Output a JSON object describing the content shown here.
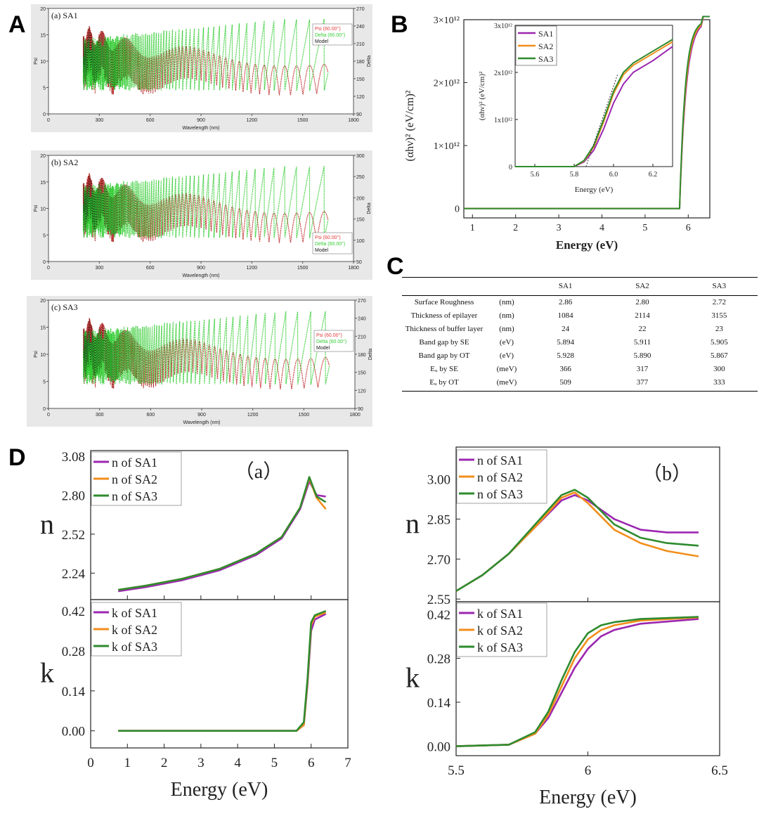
{
  "panel_letters": [
    "A",
    "B",
    "C",
    "D"
  ],
  "chart_data": [
    {
      "id": "A-a",
      "type": "line",
      "title": "(a) SA1",
      "xlabel": "Wavelength (nm)",
      "ylabel": "Psi",
      "y2label": "Delta",
      "xlim": [
        0,
        1800
      ],
      "ylim": [
        0,
        20
      ],
      "y2lim": [
        90,
        270
      ],
      "xticks": [
        0,
        300,
        600,
        900,
        1200,
        1500,
        1800
      ],
      "yticks": [
        0,
        5,
        10,
        15,
        20
      ],
      "y2ticks": [
        90,
        120,
        150,
        180,
        210,
        240,
        270
      ],
      "legend": [
        "Psi (60.00°)",
        "Delta (60.00°)",
        "Model"
      ],
      "legend_position": "top-right",
      "series": [
        {
          "name": "Psi (60.00°)",
          "color": "#e23a3a",
          "x": [
            200,
            300,
            400,
            500,
            600,
            700,
            800,
            900,
            1000,
            1100,
            1200,
            1300,
            1400,
            1500,
            1600,
            1650
          ],
          "values": [
            16,
            3,
            15,
            2,
            14,
            1,
            13,
            12,
            1,
            10,
            11,
            3,
            0,
            8,
            11,
            11
          ]
        },
        {
          "name": "Delta (60.00°)",
          "color": "#33cc33",
          "x": [
            200,
            300,
            400,
            500,
            600,
            700,
            800,
            900,
            1000,
            1100,
            1200,
            1300,
            1350,
            1400,
            1500,
            1650
          ],
          "values": [
            140,
            235,
            120,
            240,
            110,
            245,
            105,
            250,
            100,
            255,
            150,
            260,
            100,
            110,
            150,
            180
          ]
        }
      ]
    },
    {
      "id": "A-b",
      "type": "line",
      "title": "(b) SA2",
      "xlabel": "Wavelength (nm)",
      "ylabel": "Psi",
      "y2label": "Delta",
      "xlim": [
        0,
        1800
      ],
      "ylim": [
        0,
        20
      ],
      "y2lim": [
        50,
        300
      ],
      "xticks": [
        0,
        300,
        600,
        900,
        1200,
        1500,
        1800
      ],
      "yticks": [
        0,
        5,
        10,
        15,
        20
      ],
      "y2ticks": [
        50,
        100,
        150,
        200,
        250,
        300
      ],
      "legend": [
        "Psi (60.00°)",
        "Delta (60.00°)",
        "Model"
      ],
      "legend_position": "bottom-right",
      "series": [
        {
          "name": "Psi (60.00°)",
          "color": "#e23a3a",
          "x": [
            200,
            300,
            400,
            500,
            600,
            700,
            800,
            900,
            1000,
            1100,
            1200,
            1300,
            1400,
            1500,
            1620
          ],
          "values": [
            16,
            2,
            14,
            2,
            14,
            1,
            13,
            12,
            0,
            12,
            1,
            11,
            0,
            11,
            4
          ]
        },
        {
          "name": "Delta (60.00°)",
          "color": "#33cc33",
          "x": [
            200,
            300,
            400,
            500,
            600,
            700,
            800,
            900,
            1000,
            1100,
            1200,
            1300,
            1400,
            1500,
            1620
          ],
          "values": [
            120,
            230,
            120,
            240,
            120,
            245,
            120,
            250,
            120,
            255,
            120,
            255,
            120,
            260,
            265
          ]
        }
      ]
    },
    {
      "id": "A-c",
      "type": "line",
      "title": "(c) SA3",
      "xlabel": "Wavelength (nm)",
      "ylabel": "Psi",
      "y2label": "Delta",
      "xlim": [
        0,
        1800
      ],
      "ylim": [
        0,
        20
      ],
      "y2lim": [
        90,
        270
      ],
      "xticks": [
        0,
        300,
        600,
        900,
        1200,
        1500,
        1800
      ],
      "yticks": [
        0,
        5,
        10,
        15,
        20
      ],
      "y2ticks": [
        90,
        120,
        150,
        180,
        210,
        240,
        270
      ],
      "legend": [
        "Psi (60.00°)",
        "Delta (60.00°)",
        "Model"
      ],
      "legend_position": "top-right",
      "series": [
        {
          "name": "Psi (60.00°)",
          "color": "#e23a3a",
          "x": [
            200,
            300,
            400,
            500,
            600,
            700,
            800,
            900,
            1000,
            1100,
            1200,
            1300,
            1400,
            1500,
            1650
          ],
          "values": [
            17,
            2,
            14,
            1,
            14,
            1,
            13,
            1,
            13,
            0,
            12,
            0,
            11,
            0,
            8
          ]
        },
        {
          "name": "Delta (60.00°)",
          "color": "#33cc33",
          "x": [
            200,
            300,
            400,
            500,
            600,
            700,
            800,
            900,
            1000,
            1100,
            1200,
            1300,
            1400,
            1500,
            1650
          ],
          "values": [
            160,
            230,
            120,
            240,
            120,
            245,
            120,
            250,
            120,
            252,
            120,
            255,
            120,
            258,
            180
          ]
        }
      ]
    },
    {
      "id": "B",
      "type": "line",
      "xlabel": "Energy (eV)",
      "ylabel": "(αhν)² (eV/cm)²",
      "xlim": [
        0.8,
        6.5
      ],
      "ylim": [
        -0.15,
        3.0
      ],
      "xticks": [
        1,
        2,
        3,
        4,
        5,
        6
      ],
      "yticks": [
        0,
        1,
        2,
        3
      ],
      "ytick_labels": [
        "0",
        "1×10¹²",
        "2×10¹²",
        "3×10¹²"
      ],
      "legend": [
        "SA1",
        "SA2",
        "SA3"
      ],
      "legend_position": "inset top-left",
      "series": [
        {
          "name": "SA1",
          "color": "#9b27b0",
          "x": [
            0.8,
            5.8,
            5.9,
            6.0,
            6.1,
            6.2,
            6.3,
            6.5
          ],
          "values": [
            0,
            0,
            0.4,
            1.4,
            2.0,
            2.2,
            2.4,
            3.0
          ]
        },
        {
          "name": "SA2",
          "color": "#f28e1c",
          "x": [
            0.8,
            5.8,
            5.9,
            6.0,
            6.1,
            6.2,
            6.3,
            6.5
          ],
          "values": [
            0,
            0,
            0.45,
            1.6,
            2.1,
            2.3,
            2.5,
            3.0
          ]
        },
        {
          "name": "SA3",
          "color": "#2e8b2e",
          "x": [
            0.8,
            5.8,
            5.9,
            6.0,
            6.1,
            6.2,
            6.3,
            6.5
          ],
          "values": [
            0,
            0,
            0.5,
            1.7,
            2.15,
            2.4,
            2.6,
            3.0
          ]
        }
      ],
      "inset": {
        "xlabel": "Energy (eV)",
        "ylabel": "(αhν)² (eV/cm)²",
        "xlim": [
          5.5,
          6.3
        ],
        "ylim": [
          0,
          3
        ],
        "xticks": [
          5.6,
          5.8,
          6.0,
          6.2
        ],
        "yticks": [
          0,
          1,
          2,
          3
        ],
        "ytick_labels": [
          "0",
          "1x10¹²",
          "2x10¹²",
          "3x10¹²"
        ],
        "series": [
          {
            "name": "SA1",
            "x": [
              5.5,
              5.8,
              5.85,
              5.9,
              5.95,
              6.0,
              6.05,
              6.1,
              6.2,
              6.3
            ],
            "values": [
              0,
              0,
              0.1,
              0.35,
              0.8,
              1.35,
              1.75,
              2.0,
              2.25,
              2.55
            ]
          },
          {
            "name": "SA2",
            "x": [
              5.5,
              5.8,
              5.85,
              5.9,
              5.95,
              6.0,
              6.05,
              6.1,
              6.2,
              6.3
            ],
            "values": [
              0,
              0,
              0.12,
              0.42,
              0.95,
              1.55,
              1.95,
              2.15,
              2.4,
              2.65
            ]
          },
          {
            "name": "SA3",
            "x": [
              5.5,
              5.8,
              5.85,
              5.9,
              5.95,
              6.0,
              6.05,
              6.1,
              6.2,
              6.3
            ],
            "values": [
              0,
              0,
              0.13,
              0.45,
              1.0,
              1.6,
              2.0,
              2.2,
              2.45,
              2.7
            ]
          }
        ]
      }
    },
    {
      "id": "D-a-n",
      "type": "line",
      "title": "（a）",
      "ylabel": "n",
      "xlim": [
        0,
        7
      ],
      "ylim": [
        2.05,
        3.12
      ],
      "yticks": [
        2.24,
        2.52,
        2.8,
        3.08
      ],
      "legend": [
        "n of SA1",
        "n of SA2",
        "n of SA3"
      ],
      "legend_position": "top-left",
      "series": [
        {
          "name": "n of SA1",
          "color": "#9b27b0",
          "x": [
            0.75,
            1.5,
            2.5,
            3.5,
            4.5,
            5.2,
            5.7,
            5.95,
            6.15,
            6.4
          ],
          "values": [
            2.11,
            2.14,
            2.19,
            2.26,
            2.37,
            2.49,
            2.7,
            2.9,
            2.8,
            2.79
          ]
        },
        {
          "name": "n of SA2",
          "color": "#f28e1c",
          "x": [
            0.75,
            1.5,
            2.5,
            3.5,
            4.5,
            5.2,
            5.7,
            5.95,
            6.15,
            6.4
          ],
          "values": [
            2.12,
            2.15,
            2.2,
            2.27,
            2.38,
            2.5,
            2.71,
            2.92,
            2.78,
            2.7
          ]
        },
        {
          "name": "n of SA3",
          "color": "#2e8b2e",
          "x": [
            0.75,
            1.5,
            2.5,
            3.5,
            4.5,
            5.2,
            5.7,
            5.95,
            6.15,
            6.4
          ],
          "values": [
            2.12,
            2.15,
            2.2,
            2.27,
            2.38,
            2.5,
            2.71,
            2.93,
            2.79,
            2.75
          ]
        }
      ]
    },
    {
      "id": "D-a-k",
      "type": "line",
      "xlabel": "Energy (eV)",
      "ylabel": "k",
      "xlim": [
        0,
        7
      ],
      "ylim": [
        -0.06,
        0.46
      ],
      "xticks": [
        0,
        1,
        2,
        3,
        4,
        5,
        6,
        7
      ],
      "yticks": [
        0.0,
        0.14,
        0.28,
        0.42
      ],
      "legend": [
        "k of SA1",
        "k of SA2",
        "k of SA3"
      ],
      "legend_position": "top-left",
      "series": [
        {
          "name": "k of SA1",
          "color": "#9b27b0",
          "x": [
            0.75,
            5.6,
            5.8,
            5.9,
            6.0,
            6.1,
            6.4
          ],
          "values": [
            0,
            0,
            0.02,
            0.16,
            0.35,
            0.39,
            0.41
          ]
        },
        {
          "name": "k of SA2",
          "color": "#f28e1c",
          "x": [
            0.75,
            5.6,
            5.8,
            5.9,
            6.0,
            6.1,
            6.4
          ],
          "values": [
            0,
            0,
            0.02,
            0.17,
            0.37,
            0.4,
            0.415
          ]
        },
        {
          "name": "k of SA3",
          "color": "#2e8b2e",
          "x": [
            0.75,
            5.6,
            5.8,
            5.9,
            6.0,
            6.1,
            6.4
          ],
          "values": [
            0,
            0,
            0.03,
            0.18,
            0.38,
            0.405,
            0.42
          ]
        }
      ]
    },
    {
      "id": "D-b-n",
      "type": "line",
      "title": "（b）",
      "ylabel": "n",
      "xlim": [
        5.5,
        6.5
      ],
      "ylim": [
        2.54,
        3.12
      ],
      "yticks": [
        2.55,
        2.7,
        2.85,
        3.0
      ],
      "legend": [
        "n of SA1",
        "n of SA2",
        "n of SA3"
      ],
      "legend_position": "top-left",
      "series": [
        {
          "name": "n of SA1",
          "color": "#9b27b0",
          "x": [
            5.5,
            5.6,
            5.7,
            5.8,
            5.9,
            5.95,
            6.0,
            6.1,
            6.2,
            6.3,
            6.42
          ],
          "values": [
            2.58,
            2.64,
            2.72,
            2.82,
            2.92,
            2.94,
            2.92,
            2.85,
            2.81,
            2.8,
            2.8
          ]
        },
        {
          "name": "n of SA2",
          "color": "#f28e1c",
          "x": [
            5.5,
            5.6,
            5.7,
            5.8,
            5.9,
            5.95,
            6.0,
            6.1,
            6.2,
            6.3,
            6.42
          ],
          "values": [
            2.58,
            2.64,
            2.72,
            2.82,
            2.93,
            2.95,
            2.91,
            2.81,
            2.76,
            2.73,
            2.71
          ]
        },
        {
          "name": "n of SA3",
          "color": "#2e8b2e",
          "x": [
            5.5,
            5.6,
            5.7,
            5.8,
            5.9,
            5.95,
            6.0,
            6.1,
            6.2,
            6.3,
            6.42
          ],
          "values": [
            2.58,
            2.64,
            2.72,
            2.83,
            2.94,
            2.96,
            2.93,
            2.83,
            2.78,
            2.76,
            2.75
          ]
        }
      ]
    },
    {
      "id": "D-b-k",
      "type": "line",
      "xlabel": "Energy (eV)",
      "ylabel": "k",
      "xlim": [
        5.5,
        6.5
      ],
      "ylim": [
        -0.03,
        0.46
      ],
      "xticks": [
        5.5,
        6.0,
        6.5
      ],
      "yticks": [
        0.0,
        0.14,
        0.28,
        0.42
      ],
      "legend": [
        "k of SA1",
        "k of SA2",
        "k of SA3"
      ],
      "legend_position": "top-left",
      "series": [
        {
          "name": "k of SA1",
          "color": "#9b27b0",
          "x": [
            5.5,
            5.7,
            5.8,
            5.85,
            5.9,
            5.95,
            6.0,
            6.05,
            6.1,
            6.2,
            6.42
          ],
          "values": [
            0,
            0.005,
            0.04,
            0.09,
            0.17,
            0.25,
            0.31,
            0.35,
            0.37,
            0.39,
            0.405
          ]
        },
        {
          "name": "k of SA2",
          "color": "#f28e1c",
          "x": [
            5.5,
            5.7,
            5.8,
            5.85,
            5.9,
            5.95,
            6.0,
            6.05,
            6.1,
            6.2,
            6.42
          ],
          "values": [
            0,
            0.005,
            0.04,
            0.1,
            0.19,
            0.28,
            0.34,
            0.37,
            0.385,
            0.4,
            0.41
          ]
        },
        {
          "name": "k of SA3",
          "color": "#2e8b2e",
          "x": [
            5.5,
            5.7,
            5.8,
            5.85,
            5.9,
            5.95,
            6.0,
            6.05,
            6.1,
            6.2,
            6.42
          ],
          "values": [
            0,
            0.005,
            0.045,
            0.11,
            0.21,
            0.3,
            0.36,
            0.385,
            0.395,
            0.405,
            0.412
          ]
        }
      ]
    },
    {
      "id": "C",
      "type": "table",
      "columns": [
        "",
        "",
        "SA1",
        "SA2",
        "SA3"
      ],
      "rows": [
        {
          "label": "Surface Roughness",
          "unit": "(nm)",
          "values": [
            "2.86",
            "2.80",
            "2.72"
          ]
        },
        {
          "label": "Thickness of epilayer",
          "unit": "(nm)",
          "values": [
            "1084",
            "2114",
            "3155"
          ]
        },
        {
          "label": "Thickness of buffer layer",
          "unit": "(nm)",
          "values": [
            "24",
            "22",
            "23"
          ]
        },
        {
          "label": "Band gap by SE",
          "unit": "(eV)",
          "values": [
            "5.894",
            "5.911",
            "5.905"
          ]
        },
        {
          "label": "Band gap by OT",
          "unit": "(eV)",
          "values": [
            "5.928",
            "5.890",
            "5.867"
          ]
        },
        {
          "label": "Eᵤ by SE",
          "unit": "(meV)",
          "values": [
            "366",
            "317",
            "300"
          ]
        },
        {
          "label": "Eᵤ by OT",
          "unit": "(meV)",
          "values": [
            "509",
            "377",
            "333"
          ]
        }
      ]
    }
  ]
}
